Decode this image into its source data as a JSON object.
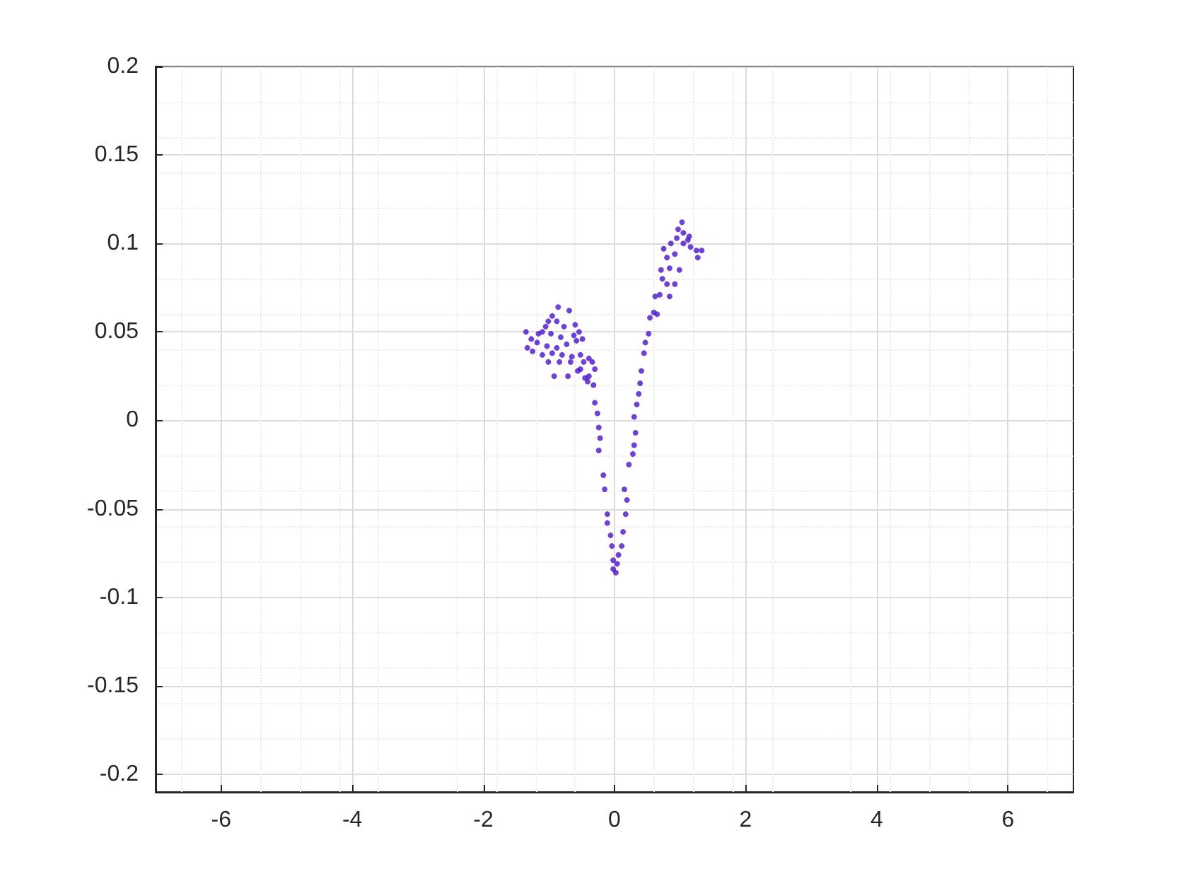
{
  "chart_data": {
    "type": "scatter",
    "color": "#4a14c8",
    "marker": "circle",
    "grid": true,
    "xlim": [
      -7,
      7
    ],
    "xticks": [
      -6,
      -4,
      -2,
      0,
      2,
      4,
      6
    ],
    "ylim": [
      -0.21,
      0.2
    ],
    "yticks": [
      -0.2,
      -0.15,
      -0.1,
      -0.05,
      0,
      0.05,
      0.1,
      0.15,
      0.2
    ],
    "x": [
      -0.86,
      -0.69,
      -0.95,
      -1.01,
      -0.88,
      -1.05,
      -0.77,
      -0.6,
      -1.1,
      -0.97,
      -0.82,
      -0.62,
      -0.54,
      -1.27,
      -1.16,
      -1.35,
      -1.18,
      -1.03,
      -0.88,
      -0.73,
      -0.58,
      -0.49,
      -1.33,
      -1.25,
      -1.1,
      -0.95,
      -0.8,
      -0.65,
      -0.52,
      -0.39,
      -1.01,
      -0.84,
      -0.67,
      -0.47,
      -0.34,
      -0.52,
      -0.71,
      -0.92,
      -0.3,
      -0.39,
      -0.56,
      -0.45,
      -0.41,
      -0.32,
      -0.3,
      -0.26,
      -0.24,
      -0.22,
      -0.24,
      -0.17,
      -0.15,
      -0.11,
      -0.11,
      -0.06,
      -0.04,
      -0.02,
      -0.02,
      0.02,
      0.04,
      0.06,
      0.11,
      0.13,
      0.17,
      0.19,
      0.15,
      0.22,
      0.28,
      0.3,
      0.32,
      0.3,
      0.34,
      0.37,
      0.39,
      0.41,
      0.45,
      0.47,
      0.52,
      0.54,
      0.6,
      0.65,
      0.62,
      0.69,
      0.84,
      0.8,
      0.92,
      0.73,
      0.71,
      0.84,
      0.99,
      0.8,
      0.92,
      0.75,
      0.86,
      0.95,
      1.05,
      1.12,
      1.16,
      1.25,
      1.27,
      1.33,
      0.97,
      1.05,
      1.03,
      1.14
    ],
    "values": [
      0.064,
      0.062,
      0.059,
      0.056,
      0.056,
      0.053,
      0.053,
      0.054,
      0.05,
      0.049,
      0.047,
      0.048,
      0.05,
      0.046,
      0.049,
      0.05,
      0.044,
      0.042,
      0.041,
      0.043,
      0.045,
      0.046,
      0.041,
      0.039,
      0.037,
      0.038,
      0.037,
      0.036,
      0.037,
      0.035,
      0.033,
      0.033,
      0.033,
      0.033,
      0.033,
      0.029,
      0.025,
      0.025,
      0.029,
      0.025,
      0.028,
      0.024,
      0.022,
      0.02,
      0.01,
      0.004,
      -0.004,
      -0.01,
      -0.017,
      -0.031,
      -0.039,
      -0.053,
      -0.058,
      -0.065,
      -0.071,
      -0.079,
      -0.084,
      -0.086,
      -0.081,
      -0.076,
      -0.071,
      -0.063,
      -0.053,
      -0.045,
      -0.039,
      -0.025,
      -0.019,
      -0.014,
      -0.007,
      0.002,
      0.009,
      0.015,
      0.021,
      0.028,
      0.038,
      0.044,
      0.049,
      0.058,
      0.061,
      0.06,
      0.07,
      0.071,
      0.07,
      0.077,
      0.077,
      0.08,
      0.085,
      0.086,
      0.085,
      0.092,
      0.094,
      0.097,
      0.1,
      0.103,
      0.1,
      0.102,
      0.098,
      0.096,
      0.092,
      0.096,
      0.108,
      0.106,
      0.112,
      0.104
    ]
  }
}
